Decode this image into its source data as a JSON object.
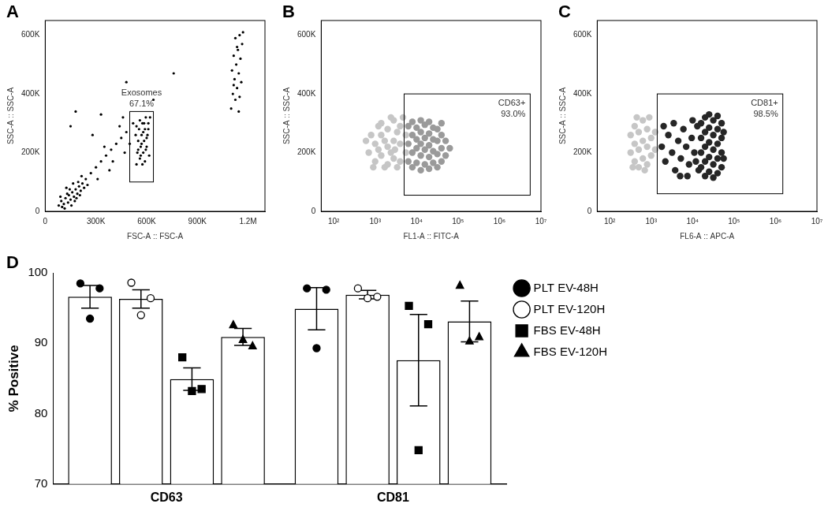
{
  "chart_data": [
    {
      "panel": "A",
      "type": "scatter",
      "x_label": "FSC-A :: FSC-A",
      "y_label": "SSC-A :: SSC-A",
      "xlim": [
        0,
        1300000
      ],
      "ylim": [
        0,
        650000
      ],
      "xticks": [
        0,
        {
          "value": 300000,
          "label": "300K"
        },
        {
          "value": 600000,
          "label": "600K"
        },
        {
          "value": 900000,
          "label": "900K"
        },
        {
          "value": 1200000,
          "label": "1.2M"
        }
      ],
      "yticks": [
        0,
        {
          "value": 200000,
          "label": "200K"
        },
        {
          "value": 400000,
          "label": "400K"
        },
        {
          "value": 600000,
          "label": "600K"
        }
      ],
      "series": [
        {
          "color": "#000000",
          "x": [
            80000,
            95000,
            110000,
            120000,
            135000,
            140000,
            150000,
            160000,
            170000,
            180000,
            190000,
            200000,
            210000,
            220000,
            230000,
            100000,
            130000,
            155000,
            175000,
            195000,
            215000,
            240000,
            250000,
            90000,
            125000,
            165000,
            185000,
            205000,
            145000,
            115000,
            270000,
            300000,
            330000,
            360000,
            390000,
            420000,
            450000,
            480000,
            310000,
            350000,
            400000,
            440000,
            470000,
            280000,
            380000,
            500000,
            520000,
            460000,
            150000,
            180000,
            330000,
            540000,
            560000,
            580000,
            600000,
            550000,
            570000,
            590000,
            610000,
            545000,
            565000,
            585000,
            605000,
            555000,
            575000,
            595000,
            615000,
            535000,
            560000,
            590000,
            600000,
            570000,
            580000,
            550000,
            610000,
            540000,
            620000,
            565000,
            595000,
            585000,
            575000,
            1100000,
            1110000,
            1120000,
            1130000,
            1140000,
            1150000,
            1105000,
            1125000,
            1135000,
            1145000,
            1155000,
            1165000,
            1115000,
            1160000,
            1170000,
            1125000,
            1145000,
            1150000,
            1135000,
            1115000,
            640000,
            480000,
            760000
          ],
          "y": [
            20000,
            35000,
            25000,
            45000,
            30000,
            55000,
            40000,
            65000,
            50000,
            75000,
            60000,
            85000,
            70000,
            95000,
            80000,
            15000,
            60000,
            20000,
            35000,
            100000,
            120000,
            110000,
            90000,
            50000,
            80000,
            95000,
            45000,
            55000,
            75000,
            10000,
            130000,
            150000,
            170000,
            190000,
            210000,
            230000,
            250000,
            270000,
            110000,
            220000,
            170000,
            290000,
            200000,
            260000,
            140000,
            230000,
            300000,
            320000,
            290000,
            340000,
            330000,
            160000,
            180000,
            200000,
            220000,
            240000,
            260000,
            280000,
            300000,
            200000,
            220000,
            240000,
            260000,
            280000,
            300000,
            320000,
            190000,
            260000,
            310000,
            170000,
            250000,
            230000,
            270000,
            210000,
            280000,
            290000,
            320000,
            190000,
            210000,
            300000,
            160000,
            350000,
            400000,
            450000,
            500000,
            550000,
            600000,
            480000,
            380000,
            420000,
            470000,
            520000,
            570000,
            530000,
            440000,
            610000,
            590000,
            340000,
            390000,
            560000,
            430000,
            380000,
            440000,
            470000
          ]
        }
      ],
      "gate": {
        "name": "Exosomes",
        "value": 67.1,
        "value_label": "67.1%",
        "x": [
          500000,
          640000
        ],
        "y": [
          100000,
          340000
        ]
      }
    },
    {
      "panel": "B",
      "type": "scatter",
      "log": "x",
      "x_label": "FL1-A :: FITC-A",
      "y_label": "SSC-A :: SSC-A",
      "xlim": [
        50,
        10000000
      ],
      "ylim": [
        0,
        650000
      ],
      "xticks": [
        {
          "value": 100,
          "label": "10²"
        },
        {
          "value": 1000,
          "label": "10³"
        },
        {
          "value": 10000,
          "label": "10⁴"
        },
        {
          "value": 100000,
          "label": "10⁵"
        },
        {
          "value": 1000000,
          "label": "10⁶"
        },
        {
          "value": 10000000,
          "label": "10⁷"
        }
      ],
      "yticks": [
        0,
        {
          "value": 200000,
          "label": "200K"
        },
        {
          "value": 400000,
          "label": "400K"
        },
        {
          "value": 600000,
          "label": "600K"
        }
      ],
      "series": [
        {
          "color": "#c6c6c6",
          "x": [
            700,
            1000,
            1000,
            1400,
            1400,
            1400,
            2000,
            2000,
            2000,
            2800,
            2800,
            2800,
            4000,
            4000,
            4000,
            5500,
            5500,
            800,
            1200,
            1700,
            1700,
            2400,
            2400,
            3400,
            3400,
            4700,
            600,
            900,
            1200,
            3000
          ],
          "y": [
            200000,
            170000,
            230000,
            190000,
            260000,
            300000,
            160000,
            220000,
            280000,
            180000,
            240000,
            310000,
            170000,
            230000,
            290000,
            200000,
            260000,
            260000,
            290000,
            150000,
            240000,
            200000,
            320000,
            150000,
            270000,
            320000,
            240000,
            150000,
            210000,
            210000
          ]
        },
        {
          "color": "#9a9a9a",
          "x": [
            6300,
            6300,
            6300,
            7900,
            7900,
            7900,
            7900,
            10000,
            10000,
            10000,
            10000,
            12600,
            12600,
            12600,
            12600,
            12600,
            15800,
            15800,
            15800,
            15800,
            20000,
            20000,
            20000,
            20000,
            20000,
            25100,
            25100,
            25100,
            25100,
            31600,
            31600,
            31600,
            31600,
            39800,
            39800,
            39800,
            39800,
            50100,
            50100,
            63100
          ],
          "y": [
            170000,
            230000,
            290000,
            150000,
            200000,
            260000,
            305000,
            165000,
            215000,
            245000,
            285000,
            140000,
            190000,
            230000,
            270000,
            310000,
            160000,
            210000,
            250000,
            295000,
            145000,
            185000,
            225000,
            265000,
            305000,
            165000,
            205000,
            245000,
            285000,
            150000,
            195000,
            240000,
            280000,
            170000,
            215000,
            260000,
            300000,
            190000,
            240000,
            215000
          ]
        }
      ],
      "gate": {
        "name": "CD63+",
        "value": 93.0,
        "value_label": "93.0%",
        "x": [
          5000,
          5500000
        ],
        "y": [
          55000,
          400000
        ]
      }
    },
    {
      "panel": "C",
      "type": "scatter",
      "log": "x",
      "x_label": "FL6-A :: APC-A",
      "y_label": "SSC-A :: SSC-A",
      "xlim": [
        50,
        10000000
      ],
      "ylim": [
        0,
        650000
      ],
      "xticks": [
        {
          "value": 100,
          "label": "10²"
        },
        {
          "value": 1000,
          "label": "10³"
        },
        {
          "value": 10000,
          "label": "10⁴"
        },
        {
          "value": 100000,
          "label": "10⁵"
        },
        {
          "value": 1000000,
          "label": "10⁶"
        },
        {
          "value": 10000000,
          "label": "10⁷"
        }
      ],
      "yticks": [
        0,
        {
          "value": 200000,
          "label": "200K"
        },
        {
          "value": 400000,
          "label": "400K"
        },
        {
          "value": 600000,
          "label": "600K"
        }
      ],
      "series": [
        {
          "color": "#c6c6c6",
          "x": [
            320,
            320,
            400,
            400,
            400,
            500,
            500,
            500,
            630,
            630,
            630,
            800,
            800,
            800,
            1000,
            1000,
            1250,
            1250,
            450,
            900,
            360,
            700
          ],
          "y": [
            200000,
            260000,
            170000,
            230000,
            290000,
            150000,
            210000,
            270000,
            180000,
            240000,
            310000,
            160000,
            220000,
            280000,
            190000,
            250000,
            210000,
            270000,
            320000,
            320000,
            150000,
            140000
          ]
        },
        {
          "color": "#262626",
          "x": [
            1800,
            2200,
            2600,
            3200,
            3800,
            4500,
            5200,
            6000,
            7000,
            8200,
            9500,
            11000,
            13000,
            14000,
            2000,
            5000,
            3500,
            7500,
            10000,
            12000,
            16000,
            16000,
            16000,
            16000,
            20000,
            20000,
            20000,
            20000,
            20000,
            25000,
            25000,
            25000,
            25000,
            25000,
            31600,
            31600,
            31600,
            31600,
            31600,
            40000,
            40000,
            40000,
            40000,
            40000,
            50000,
            50000,
            50000,
            50000,
            56000,
            56000
          ],
          "y": [
            220000,
            170000,
            260000,
            200000,
            140000,
            240000,
            180000,
            280000,
            220000,
            160000,
            250000,
            200000,
            290000,
            140000,
            290000,
            120000,
            300000,
            120000,
            310000,
            170000,
            150000,
            200000,
            250000,
            300000,
            120000,
            170000,
            220000,
            270000,
            320000,
            135000,
            185000,
            235000,
            285000,
            330000,
            115000,
            160000,
            210000,
            260000,
            310000,
            130000,
            180000,
            230000,
            280000,
            325000,
            150000,
            200000,
            250000,
            300000,
            180000,
            270000
          ]
        }
      ],
      "gate": {
        "name": "CD81+",
        "value": 98.5,
        "value_label": "98.5%",
        "x": [
          1400,
          1500000
        ],
        "y": [
          60000,
          400000
        ]
      }
    },
    {
      "panel": "D",
      "type": "bar",
      "categories": [
        "CD63",
        "CD81"
      ],
      "y_label": "% Positive",
      "ylim": [
        70,
        100
      ],
      "yticks": [
        70,
        80,
        90,
        100
      ],
      "legend": "right",
      "series": [
        {
          "name": "PLT EV-48H",
          "color": "#ffffff",
          "marker": "circle",
          "values": [
            96.6,
            94.9
          ],
          "errors": [
            1.6,
            3.0
          ],
          "points": [
            [
              98.5,
              97.8,
              93.5
            ],
            [
              97.8,
              97.6,
              89.3
            ]
          ]
        },
        {
          "name": "PLT EV-120H",
          "color": "#ffffff",
          "marker": "open-circle",
          "values": [
            96.3,
            96.9
          ],
          "errors": [
            1.3,
            0.6
          ],
          "points": [
            [
              98.6,
              96.4,
              94.0
            ],
            [
              97.8,
              96.6,
              96.4
            ]
          ]
        },
        {
          "name": "FBS EV-48H",
          "color": "#ffffff",
          "marker": "square",
          "values": [
            84.9,
            87.6
          ],
          "errors": [
            1.6,
            6.5
          ],
          "points": [
            [
              88.0,
              83.5,
              83.2
            ],
            [
              95.3,
              92.7,
              74.8
            ]
          ]
        },
        {
          "name": "FBS EV-120H",
          "color": "#ffffff",
          "marker": "triangle",
          "values": [
            90.9,
            93.1
          ],
          "errors": [
            1.2,
            2.9
          ],
          "points": [
            [
              92.6,
              89.6,
              90.5
            ],
            [
              98.2,
              90.9,
              90.3
            ]
          ]
        }
      ]
    }
  ]
}
